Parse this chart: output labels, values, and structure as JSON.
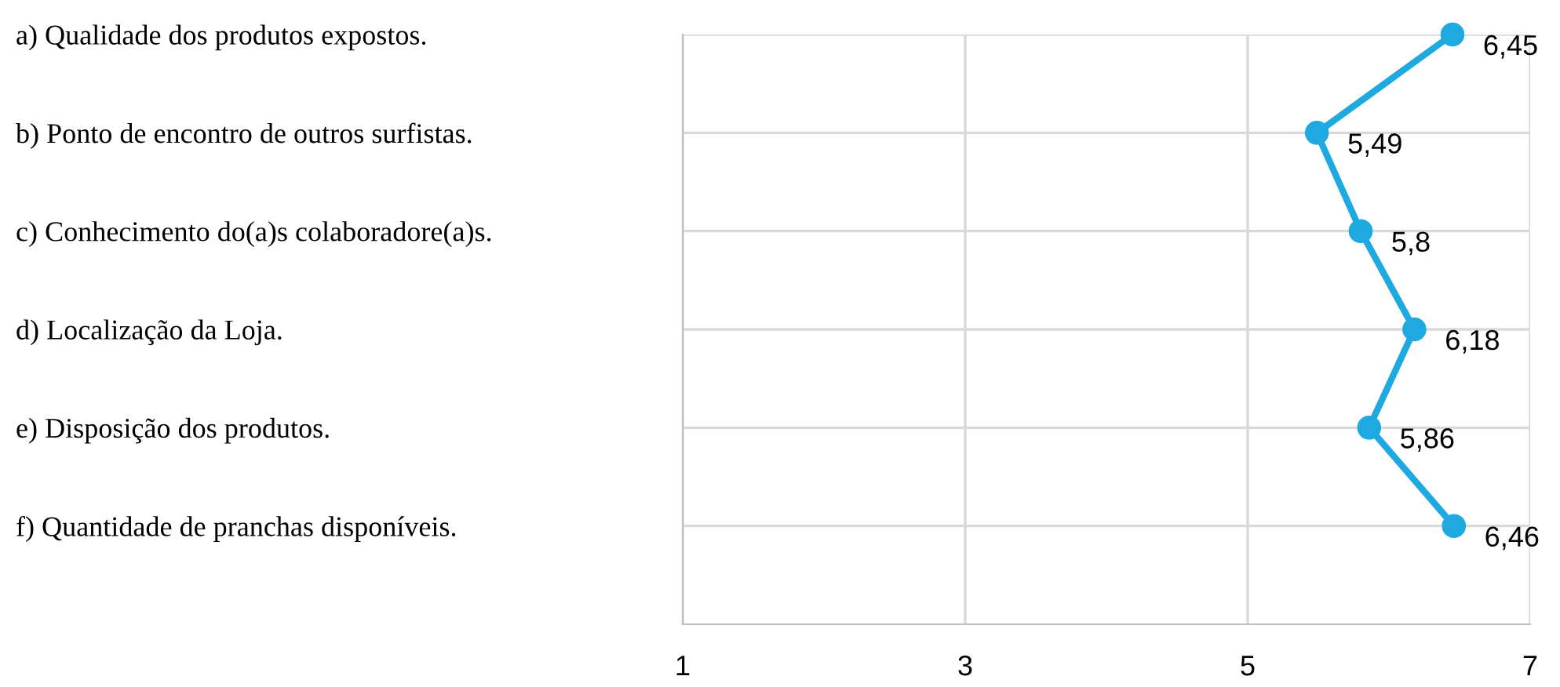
{
  "chart_data": {
    "type": "line",
    "orientation": "horizontal",
    "categories": [
      "a) Qualidade dos produtos expostos.",
      "b) Ponto de encontro de outros surfistas.",
      "c) Conhecimento do(a)s colaboradore(a)s.",
      "d) Localização da Loja.",
      "e) Disposição dos produtos.",
      "f) Quantidade de pranchas disponíveis."
    ],
    "values": [
      6.45,
      5.49,
      5.8,
      6.18,
      5.86,
      6.46
    ],
    "value_labels": [
      "6,45",
      "5,49",
      "5,8",
      "6,18",
      "5,86",
      "6,46"
    ],
    "color": "#1fa9e1",
    "marker": "circle",
    "line_style": "solid",
    "xlim": [
      1,
      7
    ],
    "xticks": [
      1,
      3,
      5,
      7
    ],
    "grid": true
  }
}
